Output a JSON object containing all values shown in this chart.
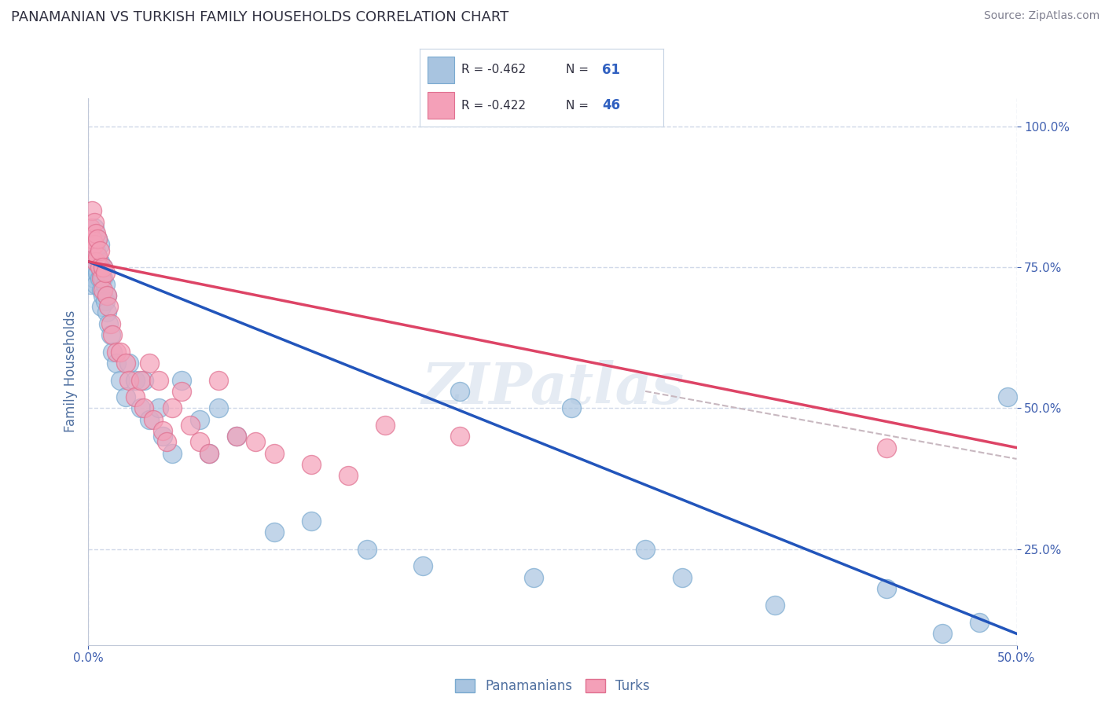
{
  "title": "PANAMANIAN VS TURKISH FAMILY HOUSEHOLDS CORRELATION CHART",
  "source": "Source: ZipAtlas.com",
  "ylabel": "Family Households",
  "legend_blue_R": "R = -0.462",
  "legend_blue_N": "61",
  "legend_pink_R": "R = -0.422",
  "legend_pink_N": "46",
  "blue_color": "#a8c4e0",
  "blue_edge_color": "#7aaad0",
  "pink_color": "#f4a0b8",
  "pink_edge_color": "#e07090",
  "blue_line_color": "#2255bb",
  "pink_line_color": "#dd4466",
  "dashed_line_color": "#c8b8c0",
  "watermark": "ZIPatlas",
  "xlim": [
    0.0,
    0.5
  ],
  "ylim": [
    0.08,
    1.05
  ],
  "blue_scatter_x": [
    0.001,
    0.001,
    0.002,
    0.002,
    0.002,
    0.003,
    0.003,
    0.003,
    0.003,
    0.004,
    0.004,
    0.004,
    0.005,
    0.005,
    0.005,
    0.006,
    0.006,
    0.006,
    0.007,
    0.007,
    0.007,
    0.008,
    0.008,
    0.008,
    0.009,
    0.009,
    0.01,
    0.01,
    0.011,
    0.012,
    0.013,
    0.015,
    0.017,
    0.02,
    0.022,
    0.025,
    0.028,
    0.03,
    0.033,
    0.038,
    0.04,
    0.045,
    0.05,
    0.06,
    0.065,
    0.07,
    0.08,
    0.1,
    0.12,
    0.15,
    0.18,
    0.2,
    0.24,
    0.26,
    0.3,
    0.32,
    0.37,
    0.43,
    0.46,
    0.48,
    0.495
  ],
  "blue_scatter_y": [
    0.72,
    0.76,
    0.8,
    0.78,
    0.74,
    0.82,
    0.79,
    0.76,
    0.73,
    0.75,
    0.78,
    0.72,
    0.74,
    0.77,
    0.8,
    0.73,
    0.76,
    0.79,
    0.74,
    0.71,
    0.68,
    0.73,
    0.7,
    0.75,
    0.72,
    0.69,
    0.7,
    0.67,
    0.65,
    0.63,
    0.6,
    0.58,
    0.55,
    0.52,
    0.58,
    0.55,
    0.5,
    0.55,
    0.48,
    0.5,
    0.45,
    0.42,
    0.55,
    0.48,
    0.42,
    0.5,
    0.45,
    0.28,
    0.3,
    0.25,
    0.22,
    0.53,
    0.2,
    0.5,
    0.25,
    0.2,
    0.15,
    0.18,
    0.1,
    0.12,
    0.52
  ],
  "pink_scatter_x": [
    0.001,
    0.001,
    0.002,
    0.002,
    0.003,
    0.003,
    0.004,
    0.004,
    0.005,
    0.005,
    0.006,
    0.006,
    0.007,
    0.008,
    0.008,
    0.009,
    0.01,
    0.011,
    0.012,
    0.013,
    0.015,
    0.017,
    0.02,
    0.022,
    0.025,
    0.028,
    0.03,
    0.033,
    0.035,
    0.038,
    0.04,
    0.042,
    0.045,
    0.05,
    0.055,
    0.06,
    0.065,
    0.07,
    0.08,
    0.09,
    0.1,
    0.12,
    0.14,
    0.16,
    0.2,
    0.43
  ],
  "pink_scatter_y": [
    0.78,
    0.82,
    0.8,
    0.85,
    0.79,
    0.83,
    0.81,
    0.76,
    0.77,
    0.8,
    0.75,
    0.78,
    0.73,
    0.71,
    0.75,
    0.74,
    0.7,
    0.68,
    0.65,
    0.63,
    0.6,
    0.6,
    0.58,
    0.55,
    0.52,
    0.55,
    0.5,
    0.58,
    0.48,
    0.55,
    0.46,
    0.44,
    0.5,
    0.53,
    0.47,
    0.44,
    0.42,
    0.55,
    0.45,
    0.44,
    0.42,
    0.4,
    0.38,
    0.47,
    0.45,
    0.43
  ],
  "blue_trend_x": [
    0.0,
    0.5
  ],
  "blue_trend_y": [
    0.76,
    0.1
  ],
  "pink_trend_x": [
    0.0,
    0.5
  ],
  "pink_trend_y": [
    0.76,
    0.43
  ],
  "grey_trend_x": [
    0.3,
    0.5
  ],
  "grey_trend_y": [
    0.53,
    0.41
  ],
  "background_color": "#ffffff",
  "grid_color": "#d0d8e8",
  "tick_color": "#4060b0",
  "axis_label_color": "#5070a0",
  "yticks": [
    0.25,
    0.5,
    0.75,
    1.0
  ],
  "ytick_labels": [
    "25.0%",
    "50.0%",
    "75.0%",
    "100.0%"
  ],
  "xtick_left_label": "0.0%",
  "xtick_right_label": "50.0%"
}
